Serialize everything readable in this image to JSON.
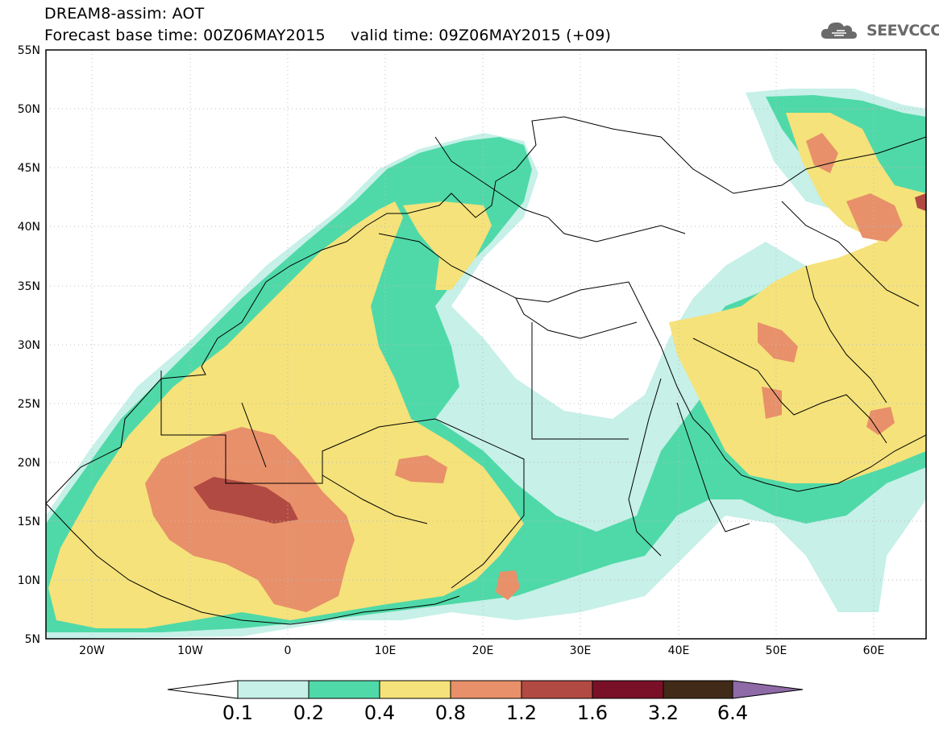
{
  "header": {
    "model": "DREAM8-assim: AOT",
    "base_time": "Forecast base time: 00Z06MAY2015",
    "valid_time": "valid time: 09Z06MAY2015 (+09)"
  },
  "logo": {
    "text": "SEEVCCC",
    "icon": "cloud-icon"
  },
  "map": {
    "lat_labels": [
      "55N",
      "50N",
      "45N",
      "40N",
      "35N",
      "30N",
      "25N",
      "20N",
      "15N",
      "10N",
      "5N"
    ],
    "lon_labels": [
      "20W",
      "10W",
      "0",
      "10E",
      "20E",
      "30E",
      "40E",
      "50E",
      "60E"
    ],
    "lat_range": [
      5,
      55
    ],
    "lon_range": [
      -25,
      65
    ]
  },
  "colorbar": {
    "ticks": [
      "0.1",
      "0.2",
      "0.4",
      "0.8",
      "1.2",
      "1.6",
      "3.2",
      "6.4"
    ],
    "colors": [
      "#ffffff",
      "#c6f0e8",
      "#4fd9a8",
      "#f5e27a",
      "#e8906a",
      "#b14a42",
      "#7a1028",
      "#412a18",
      "#8e6aa6"
    ]
  }
}
